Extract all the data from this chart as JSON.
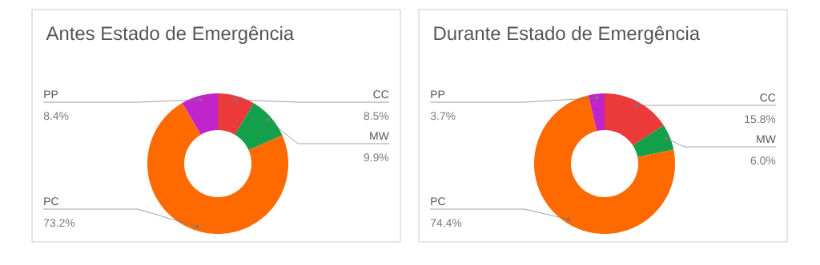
{
  "chart_data": [
    {
      "type": "donut",
      "title": "Antes Estado de Emergência",
      "categories": [
        "CC",
        "MW",
        "PC",
        "PP"
      ],
      "values": [
        8.5,
        9.9,
        73.2,
        8.4
      ],
      "value_labels": [
        "8.5%",
        "9.9%",
        "73.2%",
        "8.4%"
      ],
      "colors": [
        "#ea3a3a",
        "#14a04a",
        "#ff6a00",
        "#c224cc"
      ]
    },
    {
      "type": "donut",
      "title": "Durante Estado de Emergência",
      "categories": [
        "CC",
        "MW",
        "PC",
        "PP"
      ],
      "values": [
        15.8,
        6.0,
        74.4,
        3.7
      ],
      "value_labels": [
        "15.8%",
        "6.0%",
        "74.4%",
        "3.7%"
      ],
      "colors": [
        "#ea3a3a",
        "#14a04a",
        "#ff6a00",
        "#c224cc"
      ]
    }
  ]
}
